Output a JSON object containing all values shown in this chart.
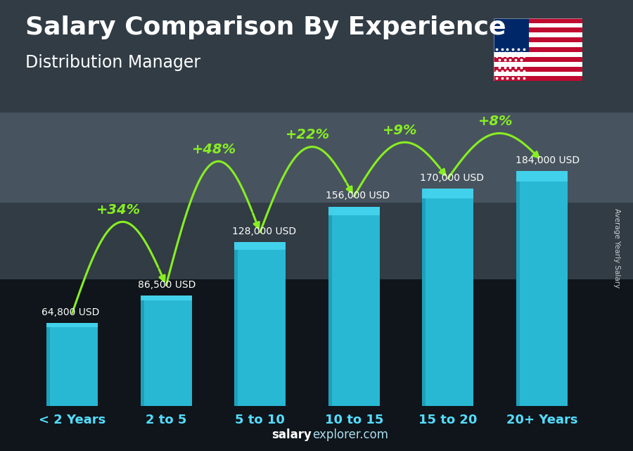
{
  "title": "Salary Comparison By Experience",
  "subtitle": "Distribution Manager",
  "ylabel": "Average Yearly Salary",
  "footer_bold": "salary",
  "footer_normal": "explorer.com",
  "categories": [
    "< 2 Years",
    "2 to 5",
    "5 to 10",
    "10 to 15",
    "15 to 20",
    "20+ Years"
  ],
  "values": [
    64800,
    86500,
    128000,
    156000,
    170000,
    184000
  ],
  "value_labels": [
    "64,800 USD",
    "86,500 USD",
    "128,000 USD",
    "156,000 USD",
    "170,000 USD",
    "184,000 USD"
  ],
  "pct_changes": [
    "+34%",
    "+48%",
    "+22%",
    "+9%",
    "+8%"
  ],
  "bar_color": "#29b8d4",
  "bar_color_light": "#45d4ee",
  "bar_color_dark": "#1890aa",
  "bg_top": "#4a6070",
  "bg_bottom": "#1a2530",
  "title_color": "#ffffff",
  "subtitle_color": "#ffffff",
  "value_label_color": "#ffffff",
  "pct_color": "#88ee22",
  "footer_bold_color": "#ffffff",
  "footer_normal_color": "#aaddee",
  "ylabel_color": "#cccccc",
  "xticklabel_color": "#55ddff",
  "ylim": [
    0,
    240000
  ],
  "title_fontsize": 26,
  "subtitle_fontsize": 17,
  "value_label_fontsize": 10,
  "pct_fontsize": 14,
  "xticklabel_fontsize": 13,
  "bar_width": 0.55,
  "arc_heights": [
    60000,
    75000,
    52000,
    35000,
    28000
  ],
  "arc_offsets": [
    8000,
    8000,
    8000,
    8000,
    8000
  ]
}
